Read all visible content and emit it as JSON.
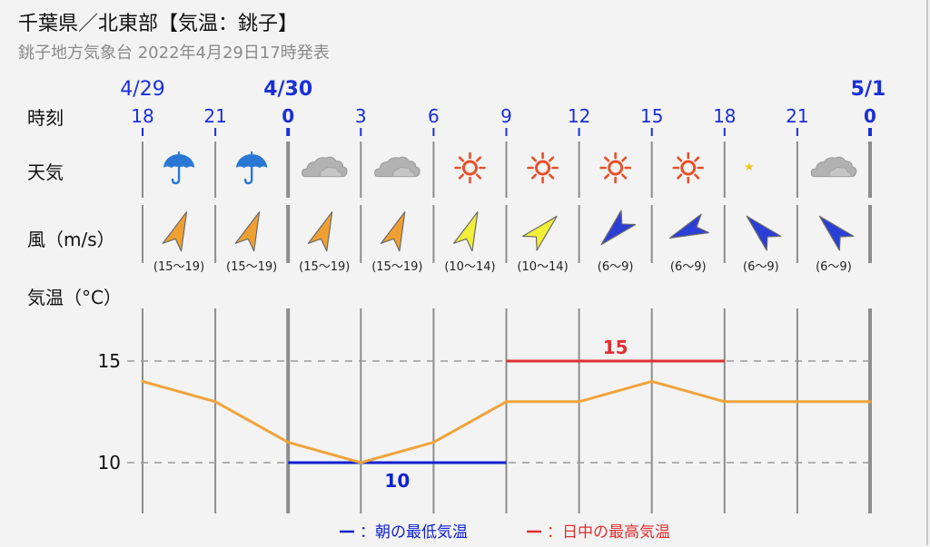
{
  "header": {
    "title": "千葉県／北東部【気温：銚子】",
    "subtitle": "銚子地方気象台 2022年4月29日17時発表"
  },
  "rows": {
    "time_label": "時刻",
    "weather_label": "天気",
    "wind_label": "風（m/s）",
    "temp_label": "気温（°C）"
  },
  "dates": [
    {
      "label": "4/29",
      "bold": false
    },
    {
      "label": "4/30",
      "bold": true
    },
    {
      "label": "5/1",
      "bold": true
    }
  ],
  "hours": [
    "18",
    "21",
    "0",
    "3",
    "6",
    "9",
    "12",
    "15",
    "18",
    "21",
    "0"
  ],
  "weather": [
    "rain-umbrella-icon",
    "rain-umbrella-icon",
    "cloud-icon",
    "cloud-icon",
    "sun-icon",
    "sun-icon",
    "sun-icon",
    "sun-icon",
    "moon-clear-icon",
    "cloud-icon"
  ],
  "wind": [
    {
      "speed": "(15〜19)",
      "from": "NNE",
      "color": "#f0a032"
    },
    {
      "speed": "(15〜19)",
      "from": "NNE",
      "color": "#f0a032"
    },
    {
      "speed": "(15〜19)",
      "from": "NNE",
      "color": "#f0a032"
    },
    {
      "speed": "(15〜19)",
      "from": "NNE",
      "color": "#f0a032"
    },
    {
      "speed": "(10〜14)",
      "from": "NNE",
      "color": "#f2ef3a"
    },
    {
      "speed": "(10〜14)",
      "from": "NE",
      "color": "#f2ef3a"
    },
    {
      "speed": "(6〜9)",
      "from": "SW",
      "color": "#2a3fd6"
    },
    {
      "speed": "(6〜9)",
      "from": "WSW",
      "color": "#2a3fd6"
    },
    {
      "speed": "(6〜9)",
      "from": "NW",
      "color": "#2a3fd6"
    },
    {
      "speed": "(6〜9)",
      "from": "NW",
      "color": "#2a3fd6"
    }
  ],
  "legend": {
    "min_label": "：朝の最低気温",
    "max_label": "：日中の最高気温",
    "min_color": "#1020d0",
    "max_color": "#e03030"
  },
  "chart_data": {
    "type": "line",
    "x": [
      "18",
      "21",
      "0",
      "3",
      "6",
      "9",
      "12",
      "15",
      "18",
      "21",
      "0"
    ],
    "series": [
      {
        "values": [
          14,
          13,
          11,
          10,
          11,
          13,
          13,
          14,
          13,
          13,
          13
        ],
        "color": "#f0a43a"
      }
    ],
    "ylim": [
      7.5,
      17
    ],
    "yticks": [
      10,
      15
    ],
    "min_temp": {
      "value": 10,
      "label": "10",
      "from_index": 2,
      "to_index": 5
    },
    "max_temp": {
      "value": 15,
      "label": "15",
      "from_index": 5,
      "to_index": 8
    },
    "grid": true
  }
}
